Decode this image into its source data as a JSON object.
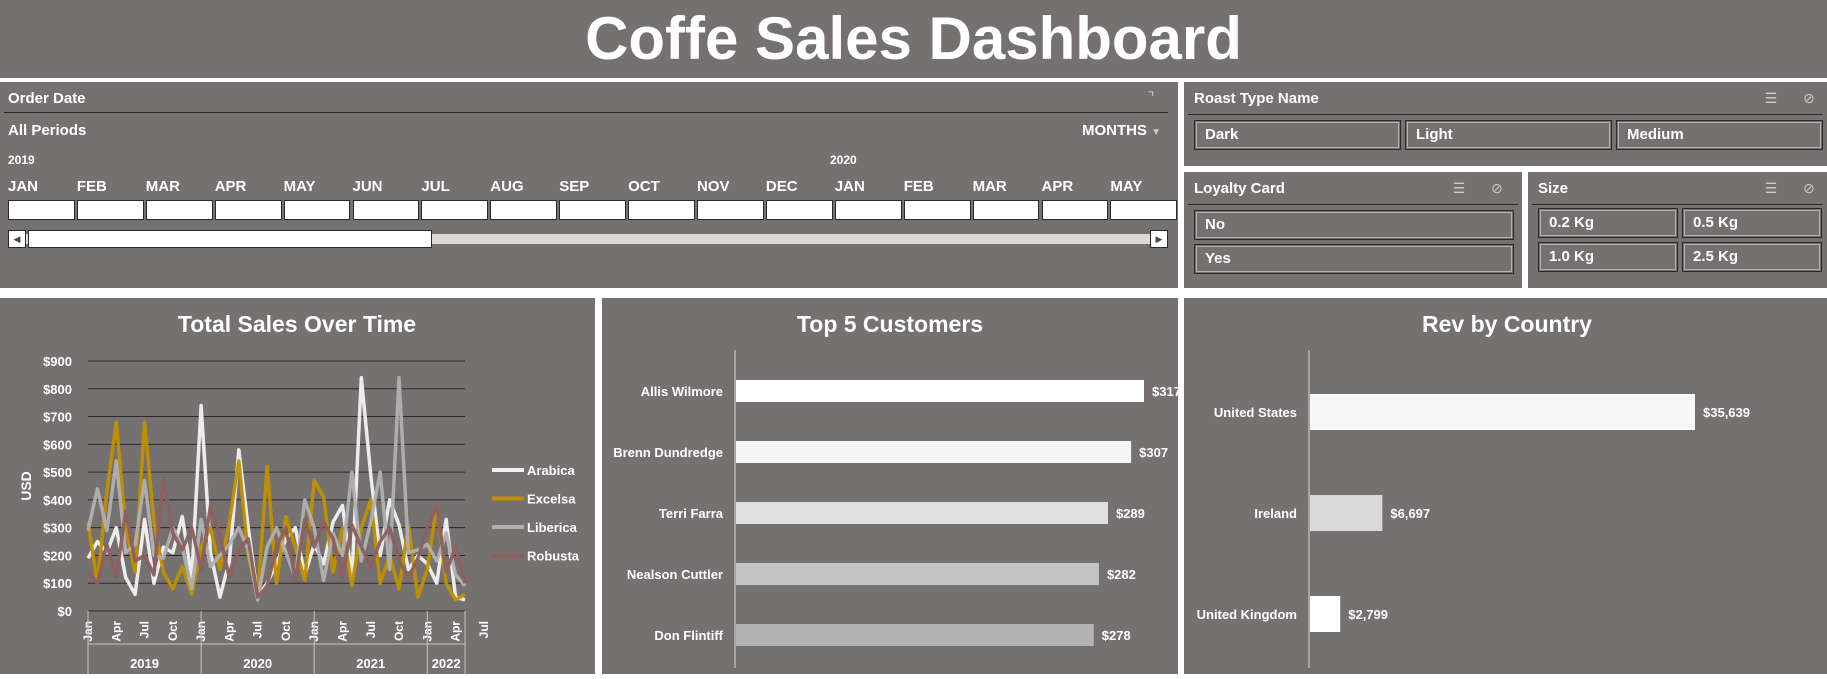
{
  "header": {
    "title": "Coffe Sales Dashboard"
  },
  "timeline": {
    "title": "Order Date",
    "period_label": "All Periods",
    "level": "MONTHS",
    "years": [
      "2019",
      "2020"
    ],
    "months": [
      "JAN",
      "FEB",
      "MAR",
      "APR",
      "MAY",
      "JUN",
      "JUL",
      "AUG",
      "SEP",
      "OCT",
      "NOV",
      "DEC",
      "JAN",
      "FEB",
      "MAR",
      "APR",
      "MAY"
    ]
  },
  "slicers": {
    "roast": {
      "title": "Roast Type Name",
      "items": [
        "Dark",
        "Light",
        "Medium"
      ]
    },
    "loyalty": {
      "title": "Loyalty Card",
      "items": [
        "No",
        "Yes"
      ]
    },
    "size": {
      "title": "Size",
      "items": [
        "0.2 Kg",
        "0.5 Kg",
        "1.0 Kg",
        "2.5 Kg"
      ]
    }
  },
  "colors": {
    "panel": "#757170",
    "arabica": "#f2f2f2",
    "excelsa": "#bf9000",
    "liberica": "#b0b0b0",
    "robusta": "#8e5f5f"
  },
  "chart_data": [
    {
      "type": "line",
      "title": "Total Sales Over Time",
      "ylabel": "USD",
      "ylim": [
        0,
        900
      ],
      "yticks": [
        "$0",
        "$100",
        "$200",
        "$300",
        "$400",
        "$500",
        "$600",
        "$700",
        "$800",
        "$900"
      ],
      "month_ticks": [
        "Jan",
        "Apr",
        "Jul",
        "Oct",
        "Jan",
        "Apr",
        "Jul",
        "Oct",
        "Jan",
        "Apr",
        "Jul",
        "Oct",
        "Jan",
        "Apr",
        "Jul"
      ],
      "years": [
        "2019",
        "2020",
        "2021",
        "2022"
      ],
      "grid": true,
      "legend": "right",
      "series": [
        {
          "name": "Arabica",
          "color": "#f2f2f2",
          "values": [
            190,
            250,
            210,
            300,
            120,
            60,
            330,
            100,
            230,
            210,
            340,
            120,
            740,
            210,
            50,
            180,
            580,
            300,
            50,
            100,
            170,
            260,
            300,
            130,
            240,
            170,
            320,
            380,
            120,
            840,
            490,
            200,
            400,
            310,
            150,
            200,
            170,
            100,
            330,
            50,
            40
          ]
        },
        {
          "name": "Excelsa",
          "color": "#bf9000",
          "values": [
            320,
            100,
            430,
            680,
            300,
            140,
            680,
            320,
            140,
            80,
            160,
            60,
            230,
            300,
            150,
            320,
            540,
            200,
            50,
            520,
            100,
            340,
            230,
            110,
            470,
            410,
            140,
            300,
            90,
            300,
            400,
            100,
            200,
            80,
            310,
            50,
            150,
            380,
            100,
            40,
            60
          ]
        },
        {
          "name": "Liberica",
          "color": "#b0b0b0",
          "values": [
            290,
            440,
            290,
            540,
            210,
            240,
            470,
            200,
            190,
            300,
            230,
            80,
            330,
            160,
            200,
            240,
            300,
            220,
            40,
            230,
            300,
            210,
            120,
            400,
            300,
            110,
            280,
            200,
            500,
            180,
            320,
            500,
            150,
            840,
            210,
            220,
            240,
            180,
            280,
            130,
            90
          ]
        },
        {
          "name": "Robusta",
          "color": "#8e5f5f",
          "values": [
            140,
            100,
            240,
            120,
            360,
            180,
            200,
            130,
            480,
            280,
            220,
            300,
            150,
            380,
            270,
            120,
            220,
            260,
            50,
            90,
            230,
            300,
            110,
            330,
            230,
            320,
            260,
            120,
            310,
            230,
            160,
            250,
            300,
            180,
            120,
            190,
            300,
            380,
            140,
            230,
            100
          ]
        }
      ]
    },
    {
      "type": "bar",
      "title": "Top 5 Customers",
      "categories": [
        "Allis Wilmore",
        "Brenn Dundredge",
        "Terri Farra",
        "Nealson Cuttler",
        "Don Flintiff"
      ],
      "values": [
        317,
        307,
        289,
        282,
        278
      ],
      "labels": [
        "$317",
        "$307",
        "$289",
        "$282",
        "$278"
      ],
      "xlim": [
        0,
        317
      ]
    },
    {
      "type": "bar",
      "title": "Rev by Country",
      "categories": [
        "United States",
        "Ireland",
        "United Kingdom"
      ],
      "values": [
        35639,
        6697,
        2799
      ],
      "labels": [
        "$35,639",
        "$6,697",
        "$2,799"
      ],
      "xlim": [
        0,
        35639
      ]
    }
  ]
}
